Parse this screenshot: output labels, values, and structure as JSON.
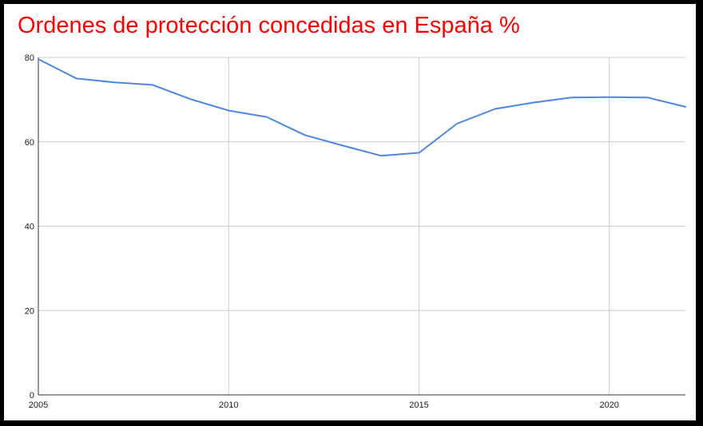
{
  "chart_data": {
    "type": "line",
    "title": "Ordenes de protección concedidas en España %",
    "xlabel": "",
    "ylabel": "",
    "xlim": [
      2005,
      2022
    ],
    "ylim": [
      0,
      80
    ],
    "x_ticks": [
      2005,
      2010,
      2015,
      2020
    ],
    "y_ticks": [
      0,
      20,
      40,
      60,
      80
    ],
    "grid": true,
    "series": [
      {
        "name": "Ordenes de protección concedidas",
        "color": "#4a86e8",
        "x": [
          2005,
          2006,
          2007,
          2008,
          2009,
          2010,
          2011,
          2012,
          2013,
          2014,
          2015,
          2016,
          2017,
          2018,
          2019,
          2020,
          2021,
          2022
        ],
        "values": [
          79.6,
          75.0,
          74.1,
          73.5,
          70.1,
          67.4,
          65.9,
          61.6,
          59.1,
          56.7,
          57.4,
          64.3,
          67.8,
          69.3,
          70.5,
          70.6,
          70.5,
          68.3
        ]
      }
    ]
  },
  "colors": {
    "title": "#ff0000",
    "grid": "#cccccc",
    "axis": "#333333",
    "background": "#ffffff",
    "frame": "#000000"
  }
}
